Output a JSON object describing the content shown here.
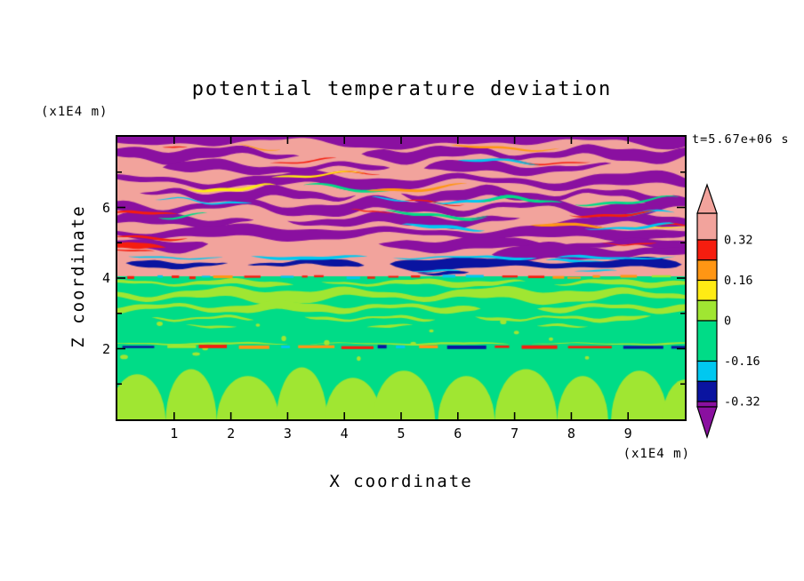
{
  "chart_data": {
    "type": "heatmap",
    "title": "potential temperature deviation",
    "xlabel": "X coordinate",
    "ylabel": "Z coordinate",
    "x_unit": "(x1E4 m)",
    "z_unit": "(x1E4 m)",
    "time_annotation": "t=5.67e+06 s",
    "x_range": [
      0,
      10
    ],
    "z_range": [
      0,
      8
    ],
    "x_ticks": [
      1,
      2,
      3,
      4,
      5,
      6,
      7,
      8,
      9
    ],
    "z_ticks": [
      2,
      4,
      6
    ],
    "z_minor_ticks": [
      1,
      3,
      5,
      7
    ],
    "contour_levels": [
      0.32,
      0.16,
      0,
      -0.16,
      -0.32
    ],
    "colorbar": {
      "labels": [
        {
          "value": 0.32,
          "text": "0.32"
        },
        {
          "value": 0.16,
          "text": "0.16"
        },
        {
          "value": 0,
          "text": "0"
        },
        {
          "value": -0.16,
          "text": "-0.16"
        },
        {
          "value": -0.32,
          "text": "-0.32"
        }
      ],
      "segments": [
        {
          "vmax": 0.425,
          "vmin": 0.32,
          "color": "#F2A39C"
        },
        {
          "vmax": 0.32,
          "vmin": 0.24,
          "color": "#F51D0F"
        },
        {
          "vmax": 0.24,
          "vmin": 0.16,
          "color": "#FF9614"
        },
        {
          "vmax": 0.16,
          "vmin": 0.08,
          "color": "#FFEB14"
        },
        {
          "vmax": 0.08,
          "vmin": 0,
          "color": "#A0E632"
        },
        {
          "vmax": 0,
          "vmin": -0.16,
          "color": "#00DC87"
        },
        {
          "vmax": -0.16,
          "vmin": -0.24,
          "color": "#00C8F0"
        },
        {
          "vmax": -0.24,
          "vmin": -0.32,
          "color": "#0A14A0"
        },
        {
          "vmax": -0.32,
          "vmin": -0.341,
          "color": "#8A10A0"
        }
      ],
      "arrow_top_color": "#F2A39C",
      "arrow_bottom_color": "#8A10A0"
    },
    "features": [
      "stratified wavy purple and salmon layers fill the upper half (z = 4.8 to 8)",
      "thin red, orange, cyan, green and yellow filaments trace layer boundaries",
      "dark navy streaks with a cyan fringe near z = 4.2 to 4.6",
      "red/orange dashed interface at z = 4.0 separating warm layers from the green region",
      "yellow-green wavy bands between z = 2.6 and 4.0 on a spring-green background",
      "sharp thin multicolored interface line at z = 2.0",
      "yellow-green convective plumes rising from the bottom boundary below z = 1.7"
    ],
    "render": {
      "seed": 7,
      "interface_z": 4.05,
      "upper_dash_z": 4.03,
      "lower_line_z": 2.04,
      "colors": {
        "salmon": "#F2A39C",
        "purple": "#8A10A0",
        "red": "#F51D0F",
        "orange": "#FF9614",
        "yellow": "#FFEB14",
        "chartreuse": "#A0E632",
        "green": "#00DC87",
        "cyan": "#00C8F0",
        "navy": "#0A14A0"
      },
      "purple_stripes": [
        {
          "z": 8.02,
          "segs": [
            [
              -0.3,
              10.3
            ]
          ],
          "th": 0.55,
          "amp": 0.08,
          "L": 2.7,
          "ph": 0.5
        },
        {
          "z": 7.52,
          "segs": [
            [
              -0.3,
              3.2
            ],
            [
              4.3,
              10.3
            ]
          ],
          "th": 0.3,
          "amp": 0.1,
          "L": 2.2,
          "ph": 2.1
        },
        {
          "z": 7.12,
          "segs": [
            [
              0.8,
              4.8
            ],
            [
              5.4,
              8.7
            ]
          ],
          "th": 0.28,
          "amp": 0.09,
          "L": 2.5,
          "ph": 4.0
        },
        {
          "z": 6.74,
          "segs": [
            [
              -0.3,
              10.3
            ]
          ],
          "th": 0.3,
          "amp": 0.12,
          "L": 3.0,
          "ph": 1.2
        },
        {
          "z": 6.36,
          "segs": [
            [
              0.4,
              4.2
            ],
            [
              5.0,
              9.7
            ]
          ],
          "th": 0.26,
          "amp": 0.1,
          "L": 2.0,
          "ph": 5.3
        },
        {
          "z": 6.0,
          "segs": [
            [
              -0.3,
              10.3
            ]
          ],
          "th": 0.3,
          "amp": 0.13,
          "L": 2.6,
          "ph": 2.8
        },
        {
          "z": 5.63,
          "segs": [
            [
              -0.3,
              2.4
            ],
            [
              3.0,
              7.1
            ],
            [
              7.6,
              10.3
            ]
          ],
          "th": 0.26,
          "amp": 0.09,
          "L": 2.3,
          "ph": 0.2
        },
        {
          "z": 5.28,
          "segs": [
            [
              -0.3,
              10.3
            ]
          ],
          "th": 0.3,
          "amp": 0.08,
          "L": 2.9,
          "ph": 3.6
        },
        {
          "z": 4.95,
          "segs": [
            [
              -0.3,
              1.6
            ],
            [
              4.6,
              10.3
            ]
          ],
          "th": 0.28,
          "amp": 0.07,
          "L": 2.4,
          "ph": 1.9
        },
        {
          "z": 4.72,
          "segs": [
            [
              6.6,
              10.3
            ]
          ],
          "th": 0.4,
          "amp": 0.06,
          "L": 2.0,
          "ph": 2.6
        }
      ],
      "red_patches": [
        {
          "z": 4.9,
          "segs": [
            [
              -0.2,
              0.85
            ]
          ],
          "th": 0.16,
          "amp": 0.03,
          "L": 1.4,
          "ph": 0.4
        },
        {
          "z": 4.97,
          "segs": [
            [
              8.55,
              9.5
            ]
          ],
          "th": 0.08,
          "amp": 0.03,
          "L": 1.2,
          "ph": 1.8
        },
        {
          "z": 5.9,
          "segs": [
            [
              4.1,
              4.9
            ]
          ],
          "th": 0.07,
          "amp": 0.04,
          "L": 1.1,
          "ph": 3.0
        }
      ],
      "navy_patches": [
        {
          "z": 4.38,
          "segs": [
            [
              0.15,
              1.95
            ]
          ],
          "th": 0.2,
          "amp": 0.04,
          "L": 1.6,
          "ph": 0.3
        },
        {
          "z": 4.42,
          "segs": [
            [
              2.3,
              4.35
            ]
          ],
          "th": 0.2,
          "amp": 0.05,
          "L": 1.8,
          "ph": 2.0
        },
        {
          "z": 4.4,
          "segs": [
            [
              4.8,
              9.95
            ]
          ],
          "th": 0.3,
          "amp": 0.05,
          "L": 2.6,
          "ph": 4.4
        },
        {
          "z": 4.14,
          "segs": [
            [
              5.3,
              6.2
            ]
          ],
          "th": 0.12,
          "amp": 0.03,
          "L": 1.2,
          "ph": 1.0
        }
      ],
      "cyan_lines": [
        {
          "z": 4.58,
          "segs": [
            [
              0.2,
              1.85
            ],
            [
              2.35,
              4.4
            ],
            [
              4.85,
              7.4
            ],
            [
              7.75,
              9.85
            ]
          ],
          "th": 0.08,
          "amp": 0.03,
          "L": 2.2,
          "ph": 0.9
        },
        {
          "z": 4.2,
          "segs": [
            [
              5.2,
              6.05
            ],
            [
              8.05,
              8.8
            ]
          ],
          "th": 0.06,
          "amp": 0.02,
          "L": 1.5,
          "ph": 2.2
        }
      ],
      "chartreuse_bands": [
        {
          "z": 3.86,
          "segs": [
            [
              -0.3,
              3.1
            ],
            [
              3.6,
              7.2
            ],
            [
              7.7,
              10.3
            ]
          ],
          "th": 0.14,
          "amp": 0.05,
          "L": 1.8,
          "ph": 1.1
        },
        {
          "z": 3.52,
          "segs": [
            [
              -0.3,
              10.3
            ]
          ],
          "th": 0.3,
          "amp": 0.09,
          "L": 2.4,
          "ph": 3.3
        },
        {
          "z": 3.16,
          "segs": [
            [
              -0.3,
              6.4
            ],
            [
              7.4,
              10.3
            ]
          ],
          "th": 0.22,
          "amp": 0.07,
          "L": 2.0,
          "ph": 5.0
        },
        {
          "z": 2.86,
          "segs": [
            [
              0.6,
              2.4
            ],
            [
              3.3,
              5.6
            ],
            [
              6.3,
              9.4
            ]
          ],
          "th": 0.12,
          "amp": 0.05,
          "L": 1.6,
          "ph": 0.6
        },
        {
          "z": 2.64,
          "segs": [
            [
              1.2,
              2.1
            ],
            [
              4.4,
              5.2
            ],
            [
              7.4,
              8.3
            ]
          ],
          "th": 0.08,
          "amp": 0.03,
          "L": 1.4,
          "ph": 2.9
        },
        {
          "z": 2.14,
          "segs": [
            [
              -0.2,
              3.0
            ],
            [
              3.4,
              6.9
            ],
            [
              7.3,
              10.2
            ]
          ],
          "th": 0.05,
          "amp": 0.02,
          "L": 2.2,
          "ph": 1.7
        }
      ],
      "bottom_blobs": [
        {
          "x": 0.35,
          "rx": 0.5,
          "h": 1.35
        },
        {
          "x": 1.3,
          "rx": 0.45,
          "h": 1.5
        },
        {
          "x": 2.3,
          "rx": 0.55,
          "h": 1.3
        },
        {
          "x": 3.25,
          "rx": 0.45,
          "h": 1.55
        },
        {
          "x": 4.15,
          "rx": 0.5,
          "h": 1.25
        },
        {
          "x": 5.05,
          "rx": 0.55,
          "h": 1.45
        },
        {
          "x": 6.15,
          "rx": 0.5,
          "h": 1.3
        },
        {
          "x": 7.2,
          "rx": 0.55,
          "h": 1.5
        },
        {
          "x": 8.2,
          "rx": 0.45,
          "h": 1.3
        },
        {
          "x": 9.2,
          "rx": 0.5,
          "h": 1.45
        },
        {
          "x": 10.0,
          "rx": 0.4,
          "h": 1.2
        }
      ]
    }
  }
}
